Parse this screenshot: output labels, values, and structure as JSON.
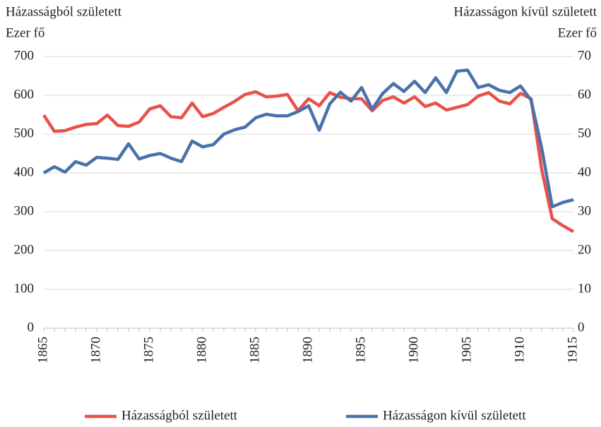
{
  "chart_data": {
    "type": "line",
    "y_title": "Házasságból született",
    "y_unit": "Ezer fő",
    "y2_title": "Házasságon kívül született",
    "y2_unit": "Ezer fő",
    "x": [
      1865,
      1866,
      1867,
      1868,
      1869,
      1870,
      1871,
      1872,
      1873,
      1874,
      1875,
      1876,
      1877,
      1878,
      1879,
      1880,
      1881,
      1882,
      1883,
      1884,
      1885,
      1886,
      1887,
      1888,
      1889,
      1890,
      1891,
      1892,
      1893,
      1894,
      1895,
      1896,
      1897,
      1898,
      1899,
      1900,
      1901,
      1902,
      1903,
      1904,
      1905,
      1906,
      1907,
      1908,
      1909,
      1910,
      1911,
      1912,
      1913,
      1914,
      1915
    ],
    "xlim": [
      1865,
      1915
    ],
    "xticks": [
      1865,
      1870,
      1875,
      1880,
      1885,
      1890,
      1895,
      1900,
      1905,
      1910,
      1915
    ],
    "ylim": [
      0,
      700
    ],
    "yticks": [
      0,
      100,
      200,
      300,
      400,
      500,
      600,
      700
    ],
    "y2lim": [
      0,
      70
    ],
    "y2ticks": [
      0,
      10,
      20,
      30,
      40,
      50,
      60,
      70
    ],
    "grid": true,
    "legend": "bottom",
    "series": [
      {
        "name": "Házasságból született",
        "color": "#e8524a",
        "values": [
          549,
          507,
          509,
          518,
          525,
          527,
          549,
          522,
          520,
          531,
          565,
          573,
          545,
          542,
          580,
          545,
          553,
          569,
          584,
          602,
          609,
          596,
          598,
          602,
          560,
          591,
          573,
          607,
          595,
          591,
          591,
          560,
          587,
          596,
          580,
          596,
          571,
          580,
          562,
          569,
          576,
          598,
          607,
          585,
          578,
          605,
          591,
          409,
          282,
          264,
          249
        ]
      },
      {
        "name": "Házasságon kívül született",
        "color": "#4a72aa",
        "axis": "y2",
        "values": [
          40,
          41.6,
          40.2,
          42.9,
          42,
          44,
          43.8,
          43.5,
          47.5,
          43.6,
          44.5,
          45,
          43.8,
          42.9,
          48.2,
          46.7,
          47.3,
          50,
          51.1,
          51.8,
          54.2,
          55.1,
          54.7,
          54.7,
          55.8,
          57.3,
          51,
          57.8,
          60.8,
          58.5,
          62,
          56.4,
          60.5,
          63,
          61,
          63.6,
          60.7,
          64.5,
          60.7,
          66.2,
          66.5,
          62,
          62.7,
          61.3,
          60.7,
          62.4,
          58.7,
          46.4,
          31.3,
          32.4,
          33.1
        ]
      }
    ]
  }
}
